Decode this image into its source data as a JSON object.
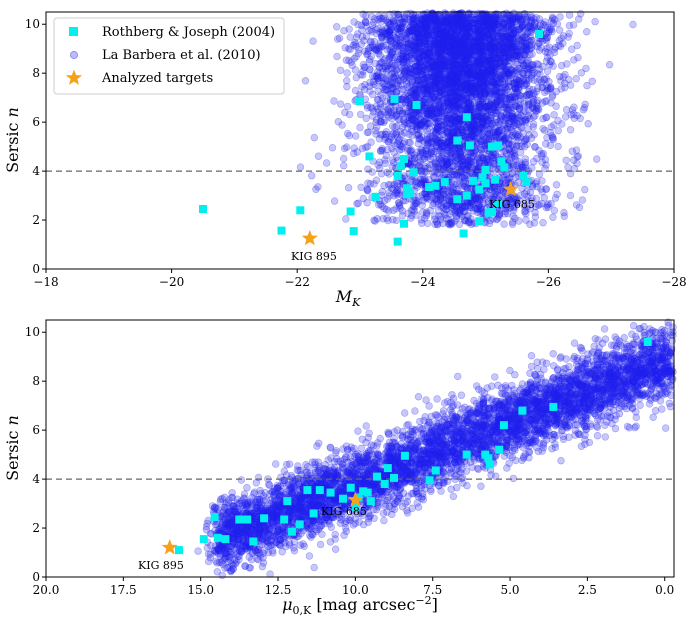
{
  "colors": {
    "cloud": "#2020ee",
    "rothberg": "#00f0f0",
    "targets": "#f5a21b",
    "threshold": "#666666"
  },
  "legend": {
    "rothberg": "Rothberg & Joseph (2004)",
    "labarbera": "La Barbera et al. (2010)",
    "targets": "Analyzed targets"
  },
  "chart_data": [
    {
      "type": "scatter",
      "id": "top",
      "ylabel": "Sersic n",
      "xlabel": "M_K",
      "xlim": [
        -18,
        -28
      ],
      "ylim": [
        0,
        10.5
      ],
      "xticks": [
        -18,
        -20,
        -22,
        -24,
        -26,
        -28
      ],
      "xtick_labels": [
        "−18",
        "−20",
        "−22",
        "−24",
        "−26",
        "−28"
      ],
      "yticks": [
        0,
        2,
        4,
        6,
        8,
        10
      ],
      "threshold_y": 4,
      "legend_position": "upper-left",
      "cloud": {
        "name": "La Barbera et al. (2010)",
        "n_points": 5200,
        "description": "dense cloud; x centred at -24.6 (sd 0.72), most y between 2 and 10"
      },
      "rothberg": {
        "name": "Rothberg & Joseph (2004)",
        "x": [
          -20.5,
          -21.75,
          -22.05,
          -22.85,
          -22.9,
          -23.0,
          -23.15,
          -23.25,
          -23.55,
          -23.6,
          -23.6,
          -23.65,
          -23.7,
          -23.7,
          -23.75,
          -23.75,
          -23.8,
          -23.85,
          -23.9,
          -24.1,
          -24.2,
          -24.35,
          -24.55,
          -24.55,
          -24.65,
          -24.7,
          -24.7,
          -24.75,
          -24.8,
          -24.9,
          -24.9,
          -24.95,
          -25.0,
          -25.0,
          -25.05,
          -25.1,
          -25.1,
          -25.15,
          -25.2,
          -25.2,
          -25.25,
          -25.3,
          -25.6,
          -25.65,
          -25.85
        ],
        "y": [
          2.45,
          1.57,
          2.4,
          2.35,
          1.55,
          6.85,
          4.6,
          2.95,
          6.95,
          1.12,
          3.8,
          4.2,
          1.85,
          4.5,
          3.05,
          3.3,
          3.1,
          3.95,
          6.7,
          3.35,
          3.4,
          3.55,
          5.25,
          2.85,
          1.45,
          6.2,
          3.0,
          5.05,
          3.6,
          1.95,
          3.25,
          3.75,
          4.05,
          3.5,
          2.3,
          2.35,
          5.0,
          3.65,
          2.65,
          5.05,
          4.4,
          4.15,
          3.8,
          3.55,
          9.6
        ]
      },
      "targets": [
        {
          "label": "KIG 895",
          "x": -22.2,
          "y": 1.25
        },
        {
          "label": "KIG 685",
          "x": -25.4,
          "y": 3.25
        }
      ]
    },
    {
      "type": "scatter",
      "id": "bottom",
      "ylabel": "Sersic n",
      "xlabel": "μ0,K [mag arcsec−2]",
      "xlim": [
        20.0,
        -0.3
      ],
      "ylim": [
        0,
        10.5
      ],
      "xticks": [
        20.0,
        17.5,
        15.0,
        12.5,
        10.0,
        7.5,
        5.0,
        2.5,
        0.0
      ],
      "xtick_labels": [
        "20.0",
        "17.5",
        "15.0",
        "12.5",
        "10.0",
        "7.5",
        "5.0",
        "2.5",
        "0.0"
      ],
      "yticks": [
        0,
        2,
        4,
        6,
        8,
        10
      ],
      "threshold_y": 4,
      "cloud": {
        "name": "La Barbera et al. (2010)",
        "n_points": 5200,
        "description": "diagonal band from (14.5, 1.5) rising to (0, 9)"
      },
      "rothberg": {
        "name": "Rothberg & Joseph (2004)",
        "x": [
          15.7,
          14.9,
          14.55,
          14.45,
          14.2,
          13.75,
          13.5,
          13.3,
          12.95,
          12.3,
          12.2,
          12.05,
          11.8,
          11.55,
          11.35,
          11.15,
          10.8,
          10.4,
          10.15,
          10.0,
          9.9,
          9.75,
          9.6,
          9.5,
          9.3,
          9.05,
          8.95,
          8.75,
          8.4,
          7.6,
          7.4,
          6.4,
          5.8,
          5.7,
          5.65,
          5.35,
          5.2,
          4.6,
          3.6,
          0.55
        ],
        "y": [
          1.1,
          1.55,
          2.45,
          1.6,
          1.55,
          2.35,
          2.35,
          1.45,
          2.4,
          2.35,
          3.1,
          1.85,
          2.15,
          3.55,
          2.6,
          3.55,
          3.45,
          3.2,
          3.65,
          2.85,
          3.25,
          3.5,
          3.45,
          3.1,
          4.1,
          3.8,
          4.45,
          4.05,
          4.95,
          3.95,
          4.35,
          5.0,
          5.0,
          4.85,
          4.6,
          5.2,
          6.2,
          6.8,
          6.95,
          9.6
        ]
      },
      "targets": [
        {
          "label": "KIG 895",
          "x": 16.0,
          "y": 1.2
        },
        {
          "label": "KIG 685",
          "x": 10.0,
          "y": 3.15
        }
      ]
    }
  ]
}
